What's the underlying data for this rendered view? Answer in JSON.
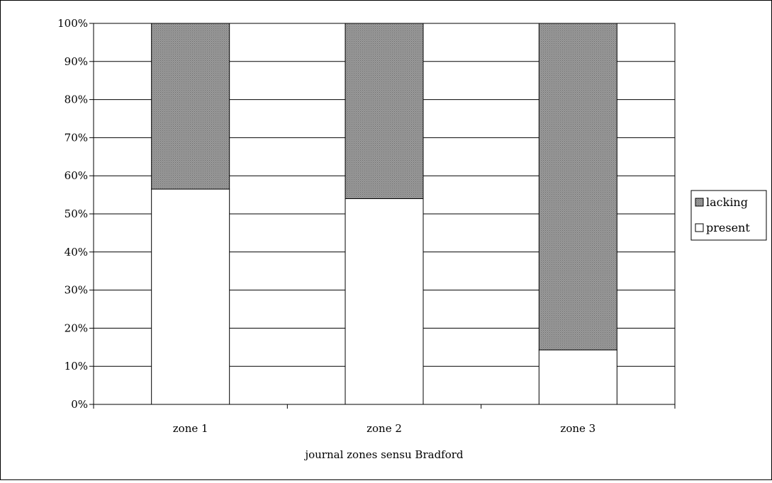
{
  "chart_data": {
    "type": "bar",
    "stacked": "percent",
    "categories": [
      "zone 1",
      "zone 2",
      "zone 3"
    ],
    "series": [
      {
        "name": "present",
        "values": [
          56.5,
          54,
          14.3
        ],
        "color": "#ffffff"
      },
      {
        "name": "lacking",
        "values": [
          43.5,
          46,
          85.7
        ],
        "color": "#8c8c8c"
      }
    ],
    "ylim": [
      0,
      100
    ],
    "yticks": [
      "0%",
      "10%",
      "20%",
      "30%",
      "40%",
      "50%",
      "60%",
      "70%",
      "80%",
      "90%",
      "100%"
    ],
    "xlabel": "journal zones sensu Bradford",
    "ylabel": "",
    "grid": true,
    "legend": {
      "position": "right",
      "entries": [
        "lacking",
        "present"
      ]
    }
  }
}
